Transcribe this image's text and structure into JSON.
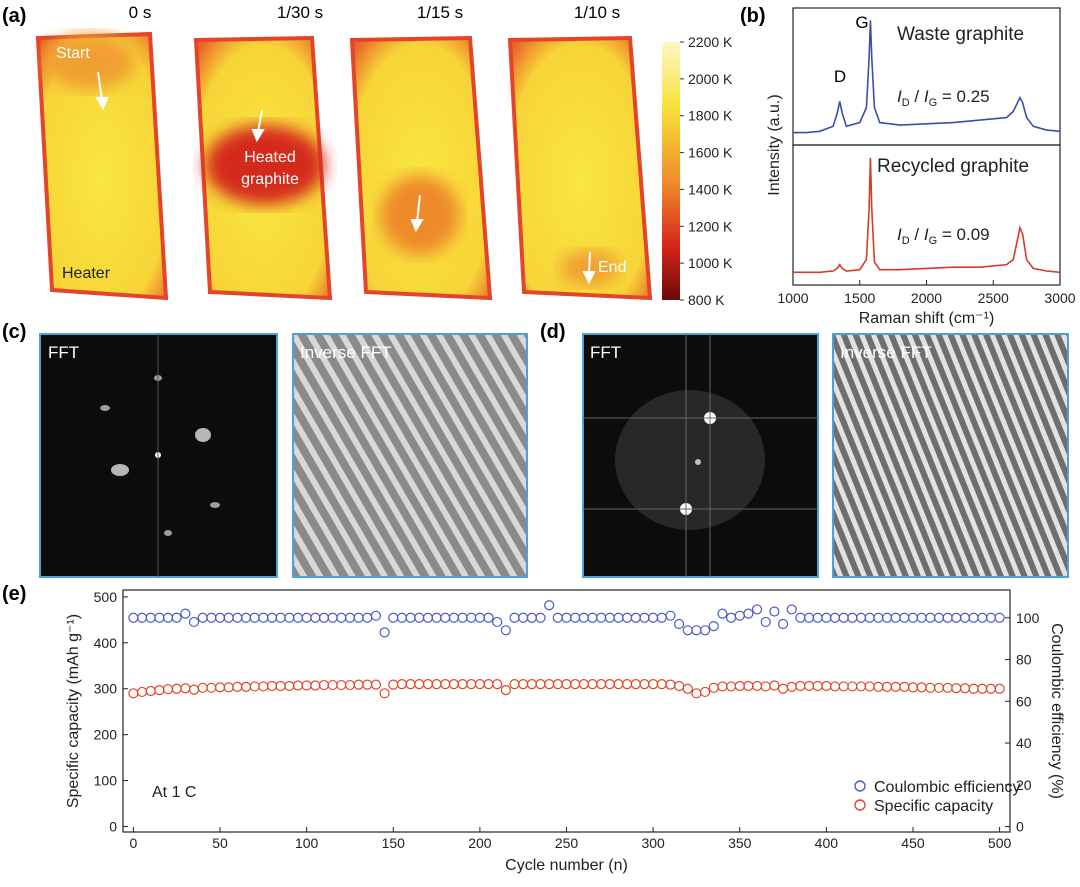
{
  "panel_labels": [
    "(a)",
    "(b)",
    "(c)",
    "(d)",
    "(e)"
  ],
  "thermal": {
    "times": [
      "0 s",
      "1/30 s",
      "1/15 s",
      "1/10 s"
    ],
    "start": "Start",
    "heated": [
      "Heated",
      "graphite"
    ],
    "heater": "Heater",
    "end": "End",
    "colorbar": {
      "lim": [
        800,
        2200
      ],
      "ticks": [
        {
          "value": 2200,
          "label": "2200 K"
        },
        {
          "value": 2000,
          "label": "2000 K"
        },
        {
          "value": 1800,
          "label": "1800 K"
        },
        {
          "value": 1600,
          "label": "1600 K"
        },
        {
          "value": 1400,
          "label": "1400 K"
        },
        {
          "value": 1200,
          "label": "1200 K"
        },
        {
          "value": 1000,
          "label": "1000 K"
        },
        {
          "value": 800,
          "label": "800 K"
        }
      ]
    }
  },
  "fft": {
    "c": [
      "FFT",
      "Inverse FFT"
    ],
    "d": [
      "FFT",
      "Inverse FFT"
    ]
  },
  "chart_data": [
    {
      "type": "line",
      "ylabel": "Intensity (a.u.)",
      "label": "Waste graphite",
      "peaks": [
        "D",
        "G"
      ],
      "ratio": [
        "I",
        "D",
        " / ",
        "I",
        "G",
        " = 0.25"
      ],
      "xlim": [
        1000,
        3000
      ],
      "ylim": [
        0,
        1.1
      ],
      "x": [
        1000,
        1100,
        1200,
        1300,
        1330,
        1350,
        1370,
        1400,
        1500,
        1550,
        1570,
        1580,
        1590,
        1610,
        1650,
        1800,
        2000,
        2200,
        2400,
        2600,
        2650,
        2700,
        2720,
        2750,
        2800,
        2900,
        3000
      ],
      "series": [
        {
          "color": "#3a4fa8",
          "values": [
            0.1,
            0.1,
            0.11,
            0.15,
            0.25,
            0.35,
            0.25,
            0.15,
            0.18,
            0.3,
            0.7,
            1.0,
            0.7,
            0.3,
            0.18,
            0.16,
            0.17,
            0.18,
            0.2,
            0.22,
            0.27,
            0.38,
            0.34,
            0.22,
            0.15,
            0.12,
            0.11
          ]
        }
      ]
    },
    {
      "type": "line",
      "xlabel": "Raman shift (cm⁻¹)",
      "label": "Recycled graphite",
      "ratio": [
        "I",
        "D",
        " / ",
        "I",
        "G",
        " = 0.09"
      ],
      "xlim": [
        1000,
        3000
      ],
      "ylim": [
        0,
        1.1
      ],
      "xticks": [
        1000,
        1500,
        2000,
        2500,
        3000
      ],
      "x": [
        1000,
        1100,
        1200,
        1300,
        1330,
        1350,
        1370,
        1400,
        1500,
        1550,
        1570,
        1580,
        1590,
        1610,
        1650,
        1800,
        2000,
        2200,
        2400,
        2600,
        2650,
        2700,
        2720,
        2750,
        2800,
        2900,
        3000
      ],
      "series": [
        {
          "color": "#d63a2a",
          "values": [
            0.1,
            0.1,
            0.1,
            0.11,
            0.13,
            0.16,
            0.13,
            0.11,
            0.12,
            0.2,
            0.6,
            1.0,
            0.6,
            0.18,
            0.12,
            0.12,
            0.13,
            0.14,
            0.14,
            0.16,
            0.2,
            0.45,
            0.4,
            0.2,
            0.13,
            0.11,
            0.1
          ]
        }
      ]
    },
    {
      "type": "scatter",
      "xlabel": "Cycle number (n)",
      "ylabel": "Specific capacity (mAh g⁻¹)",
      "y2label": "Coulombic efficiency (%)",
      "annotation": "At 1 C",
      "xlim": [
        -6,
        506
      ],
      "ylim": [
        -12,
        515
      ],
      "y2lim": [
        -2.6,
        113.3
      ],
      "xticks": [
        0,
        50,
        100,
        150,
        200,
        250,
        300,
        350,
        400,
        450,
        500
      ],
      "yticks": [
        0,
        100,
        200,
        300,
        400,
        500
      ],
      "y2ticks": [
        0,
        20,
        40,
        60,
        80,
        100
      ],
      "legend": "lower right",
      "x": [
        0,
        5,
        10,
        15,
        20,
        25,
        30,
        35,
        40,
        45,
        50,
        55,
        60,
        65,
        70,
        75,
        80,
        85,
        90,
        95,
        100,
        105,
        110,
        115,
        120,
        125,
        130,
        135,
        140,
        145,
        150,
        155,
        160,
        165,
        170,
        175,
        180,
        185,
        190,
        195,
        200,
        205,
        210,
        215,
        220,
        225,
        230,
        235,
        240,
        245,
        250,
        255,
        260,
        265,
        270,
        275,
        280,
        285,
        290,
        295,
        300,
        305,
        310,
        315,
        320,
        325,
        330,
        335,
        340,
        345,
        350,
        355,
        360,
        365,
        370,
        375,
        380,
        385,
        390,
        395,
        400,
        405,
        410,
        415,
        420,
        425,
        430,
        435,
        440,
        445,
        450,
        455,
        460,
        465,
        470,
        475,
        480,
        485,
        490,
        495,
        500
      ],
      "series": [
        {
          "name": "Coulombic efficiency",
          "color": "#4a5cc8",
          "axis": "y2",
          "values": [
            100,
            100,
            100,
            100,
            100,
            100,
            102,
            98,
            100,
            100,
            100,
            100,
            100,
            100,
            100,
            100,
            100,
            100,
            100,
            100,
            100,
            100,
            100,
            100,
            100,
            100,
            100,
            100,
            101,
            93,
            100,
            100,
            100,
            100,
            100,
            100,
            100,
            100,
            100,
            100,
            100,
            100,
            98,
            94,
            100,
            100,
            100,
            100,
            106,
            100,
            100,
            100,
            100,
            100,
            100,
            100,
            100,
            100,
            100,
            100,
            100,
            100,
            101,
            97,
            94,
            94,
            94,
            96,
            102,
            100,
            101,
            102,
            104,
            98,
            103,
            97,
            104,
            100,
            100,
            100,
            100,
            100,
            100,
            100,
            100,
            100,
            100,
            100,
            100,
            100,
            100,
            100,
            100,
            100,
            100,
            100,
            100,
            100,
            100,
            100,
            100
          ]
        },
        {
          "name": "Specific capacity",
          "color": "#e0452a",
          "values": [
            290,
            293,
            295,
            297,
            299,
            300,
            301,
            298,
            302,
            302,
            303,
            303,
            304,
            304,
            305,
            305,
            306,
            306,
            306,
            307,
            307,
            307,
            308,
            308,
            308,
            308,
            309,
            309,
            309,
            290,
            309,
            310,
            310,
            310,
            310,
            310,
            310,
            310,
            310,
            310,
            310,
            310,
            310,
            297,
            310,
            310,
            310,
            310,
            310,
            310,
            310,
            310,
            310,
            310,
            310,
            310,
            310,
            310,
            310,
            310,
            310,
            310,
            309,
            306,
            300,
            290,
            293,
            302,
            305,
            305,
            306,
            306,
            306,
            305,
            307,
            300,
            304,
            306,
            306,
            306,
            306,
            305,
            305,
            305,
            305,
            305,
            304,
            304,
            304,
            304,
            303,
            303,
            302,
            302,
            302,
            301,
            301,
            300,
            300,
            300,
            300
          ]
        }
      ]
    }
  ]
}
